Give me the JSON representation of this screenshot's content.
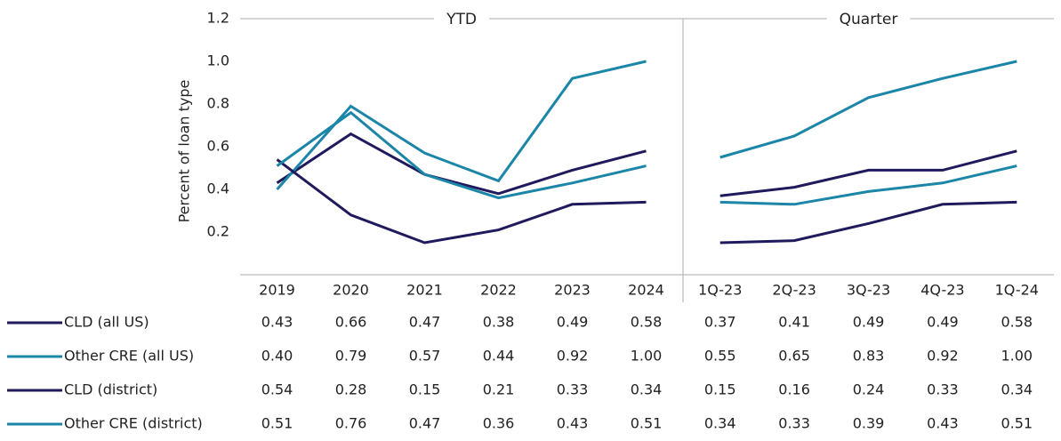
{
  "chart_data": [
    {
      "type": "line",
      "title": "YTD",
      "ylabel": "Percent of loan type",
      "categories": [
        "2019",
        "2020",
        "2021",
        "2022",
        "2023",
        "2024"
      ],
      "ylim": [
        0,
        1.2
      ],
      "yticks": [
        0.2,
        0.4,
        0.6,
        0.8,
        {
          "value": 1,
          "label": "1.0"
        },
        1.2
      ],
      "grid": false,
      "series": [
        {
          "name": "CLD (all US)",
          "color": "#1f1a5c",
          "values": [
            0.43,
            0.66,
            0.47,
            0.38,
            0.49,
            0.58
          ],
          "value_labels": [
            "0.43",
            "0.66",
            "0.47",
            "0.38",
            "0.49",
            "0.58"
          ]
        },
        {
          "name": "Other CRE (all US)",
          "color": "#1b86a8",
          "values": [
            0.4,
            0.79,
            0.57,
            0.44,
            0.92,
            1.0
          ],
          "value_labels": [
            "0.40",
            "0.79",
            "0.57",
            "0.44",
            "0.92",
            "1.00"
          ]
        },
        {
          "name": "CLD (district)",
          "color": "#1f1a5c",
          "values": [
            0.54,
            0.28,
            0.15,
            0.21,
            0.33,
            0.34
          ],
          "value_labels": [
            "0.54",
            "0.28",
            "0.15",
            "0.21",
            "0.33",
            "0.34"
          ]
        },
        {
          "name": "Other CRE (district)",
          "color": "#1b86a8",
          "values": [
            0.51,
            0.76,
            0.47,
            0.36,
            0.43,
            0.51
          ],
          "value_labels": [
            "0.51",
            "0.76",
            "0.47",
            "0.36",
            "0.43",
            "0.51"
          ]
        }
      ]
    },
    {
      "type": "line",
      "title": "Quarter",
      "categories": [
        "1Q-23",
        "2Q-23",
        "3Q-23",
        "4Q-23",
        "1Q-24"
      ],
      "ylim": [
        0,
        1.2
      ],
      "series": [
        {
          "color": "#1f1a5c",
          "values": [
            0.37,
            0.41,
            0.49,
            0.49,
            0.58
          ],
          "value_labels": [
            "0.37",
            "0.41",
            "0.49",
            "0.49",
            "0.58"
          ]
        },
        {
          "color": "#1b86a8",
          "values": [
            0.55,
            0.65,
            0.83,
            0.92,
            1.0
          ],
          "value_labels": [
            "0.55",
            "0.65",
            "0.83",
            "0.92",
            "1.00"
          ]
        },
        {
          "color": "#1f1a5c",
          "values": [
            0.15,
            0.16,
            0.24,
            0.33,
            0.34
          ],
          "value_labels": [
            "0.15",
            "0.16",
            "0.24",
            "0.33",
            "0.34"
          ]
        },
        {
          "color": "#1b86a8",
          "values": [
            0.34,
            0.33,
            0.39,
            0.43,
            0.51
          ],
          "value_labels": [
            "0.34",
            "0.33",
            "0.39",
            "0.43",
            "0.51"
          ]
        }
      ]
    }
  ]
}
